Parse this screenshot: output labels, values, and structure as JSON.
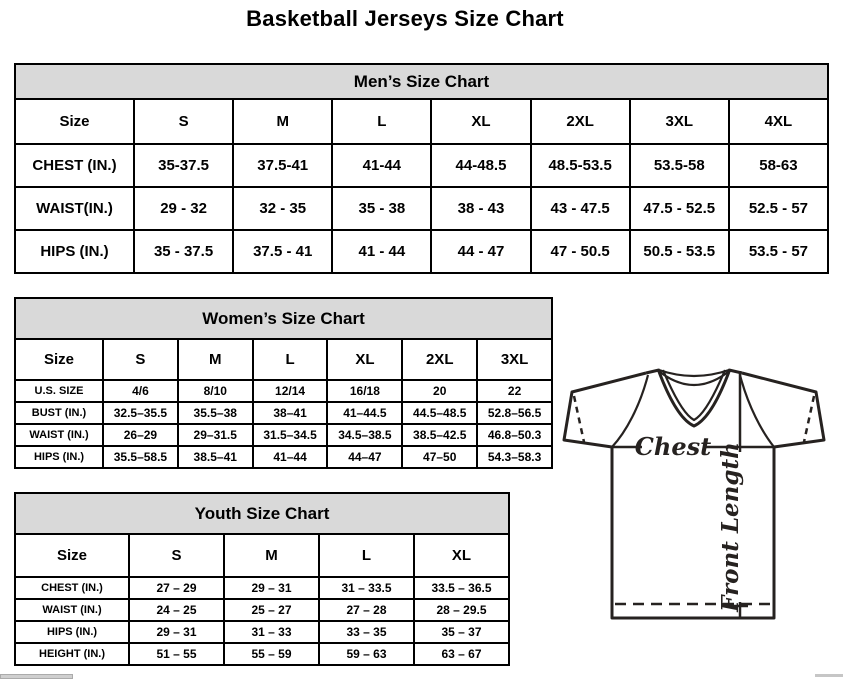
{
  "page_title": "Basketball Jerseys Size Chart",
  "colors": {
    "section_header_bg": "#d9d9d9",
    "table_border": "#000000",
    "diagram_ink": "#262220"
  },
  "tables": {
    "men": {
      "title": "Men’s Size Chart",
      "columns": [
        "Size",
        "S",
        "M",
        "L",
        "XL",
        "2XL",
        "3XL",
        "4XL"
      ],
      "rows": [
        {
          "label": "CHEST (IN.)",
          "values": [
            "35-37.5",
            "37.5-41",
            "41-44",
            "44-48.5",
            "48.5-53.5",
            "53.5-58",
            "58-63"
          ]
        },
        {
          "label": "WAIST(IN.)",
          "values": [
            "29 - 32",
            "32 - 35",
            "35 - 38",
            "38 - 43",
            "43 - 47.5",
            "47.5 - 52.5",
            "52.5 - 57"
          ]
        },
        {
          "label": "HIPS (IN.)",
          "values": [
            "35 - 37.5",
            "37.5 - 41",
            "41 - 44",
            "44 - 47",
            "47 - 50.5",
            "50.5 - 53.5",
            "53.5 - 57"
          ]
        }
      ]
    },
    "women": {
      "title": "Women’s Size Chart",
      "columns": [
        "Size",
        "S",
        "M",
        "L",
        "XL",
        "2XL",
        "3XL"
      ],
      "rows": [
        {
          "label": "U.S. SIZE",
          "values": [
            "4/6",
            "8/10",
            "12/14",
            "16/18",
            "20",
            "22"
          ]
        },
        {
          "label": "BUST (IN.)",
          "values": [
            "32.5–35.5",
            "35.5–38",
            "38–41",
            "41–44.5",
            "44.5–48.5",
            "52.8–56.5"
          ]
        },
        {
          "label": "WAIST (IN.)",
          "values": [
            "26–29",
            "29–31.5",
            "31.5–34.5",
            "34.5–38.5",
            "38.5–42.5",
            "46.8–50.3"
          ]
        },
        {
          "label": "HIPS (IN.)",
          "values": [
            "35.5–58.5",
            "38.5–41",
            "41–44",
            "44–47",
            "47–50",
            "54.3–58.3"
          ]
        }
      ]
    },
    "youth": {
      "title": "Youth Size Chart",
      "columns": [
        "Size",
        "S",
        "M",
        "L",
        "XL"
      ],
      "rows": [
        {
          "label": "CHEST (IN.)",
          "values": [
            "27 – 29",
            "29 – 31",
            "31 – 33.5",
            "33.5 – 36.5"
          ]
        },
        {
          "label": "WAIST (IN.)",
          "values": [
            "24 – 25",
            "25 – 27",
            "27 – 28",
            "28 – 29.5"
          ]
        },
        {
          "label": "HIPS (IN.)",
          "values": [
            "29 – 31",
            "31 – 33",
            "33 – 35",
            "35 – 37"
          ]
        },
        {
          "label": "HEIGHT (IN.)",
          "values": [
            "51 – 55",
            "55 – 59",
            "59 – 63",
            "63 – 67"
          ]
        }
      ]
    }
  },
  "diagram": {
    "chest_label": "Chest",
    "front_length_label": "Front Length"
  }
}
